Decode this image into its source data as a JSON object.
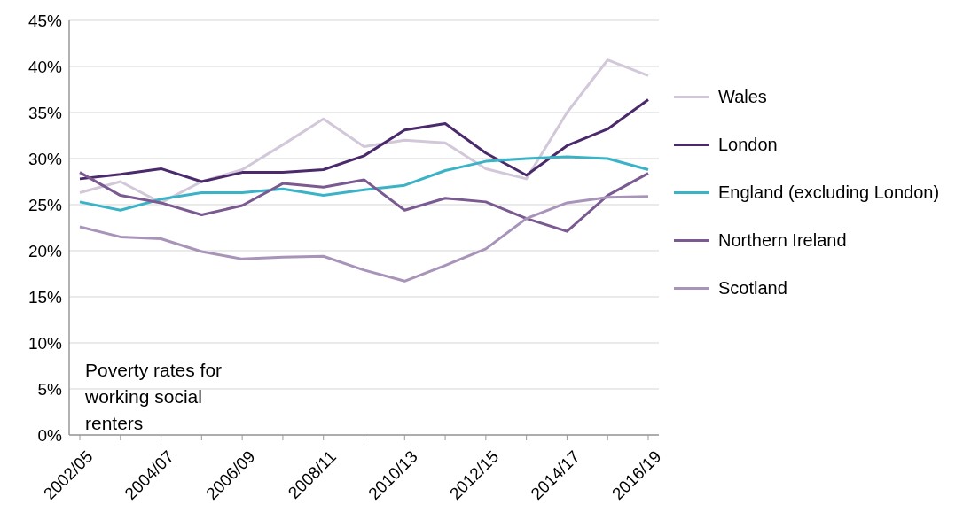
{
  "chart_data": {
    "type": "line",
    "categories": [
      "2002/05",
      null,
      "2004/07",
      null,
      "2006/09",
      null,
      "2008/11",
      null,
      "2010/13",
      null,
      "2012/15",
      null,
      "2014/17",
      null,
      "2016/19"
    ],
    "series": [
      {
        "name": "Wales",
        "color": "#d2c8da",
        "values": [
          26.3,
          27.5,
          25.2,
          27.5,
          28.8,
          31.5,
          34.3,
          31.3,
          32.0,
          31.7,
          28.9,
          27.8,
          35.0,
          40.7,
          39.0
        ]
      },
      {
        "name": "London",
        "color": "#4b2a6b",
        "values": [
          27.8,
          28.3,
          28.9,
          27.5,
          28.5,
          28.5,
          28.8,
          30.3,
          33.1,
          33.8,
          30.6,
          28.2,
          31.4,
          33.2,
          36.4
        ]
      },
      {
        "name": "England (excluding London)",
        "color": "#3bb3c7",
        "values": [
          25.3,
          24.4,
          25.6,
          26.3,
          26.3,
          26.7,
          26.0,
          26.6,
          27.1,
          28.7,
          29.7,
          30.0,
          30.2,
          30.0,
          28.8
        ]
      },
      {
        "name": "Northern Ireland",
        "color": "#7a5a90",
        "values": [
          28.5,
          26.0,
          25.2,
          23.9,
          24.9,
          27.3,
          26.9,
          27.7,
          24.4,
          25.7,
          25.3,
          23.5,
          22.1,
          26.0,
          28.4
        ]
      },
      {
        "name": "Scotland",
        "color": "#a894b9",
        "values": [
          22.6,
          21.5,
          21.3,
          19.9,
          19.1,
          19.3,
          19.4,
          17.9,
          16.7,
          18.4,
          20.2,
          23.5,
          25.2,
          25.8,
          25.9
        ]
      }
    ],
    "ylim": [
      0,
      45
    ],
    "yticks": [
      {
        "value": 0,
        "label": "0%"
      },
      {
        "value": 5,
        "label": "5%"
      },
      {
        "value": 10,
        "label": "10%"
      },
      {
        "value": 15,
        "label": "15%"
      },
      {
        "value": 20,
        "label": "20%"
      },
      {
        "value": 25,
        "label": "25%"
      },
      {
        "value": 30,
        "label": "30%"
      },
      {
        "value": 35,
        "label": "35%"
      },
      {
        "value": 40,
        "label": "40%"
      },
      {
        "value": 45,
        "label": "45%"
      }
    ],
    "grid": "y",
    "legend": "right",
    "marker": "none",
    "line_style": "solid",
    "annotations": [
      "Poverty rates for working social renters"
    ]
  }
}
